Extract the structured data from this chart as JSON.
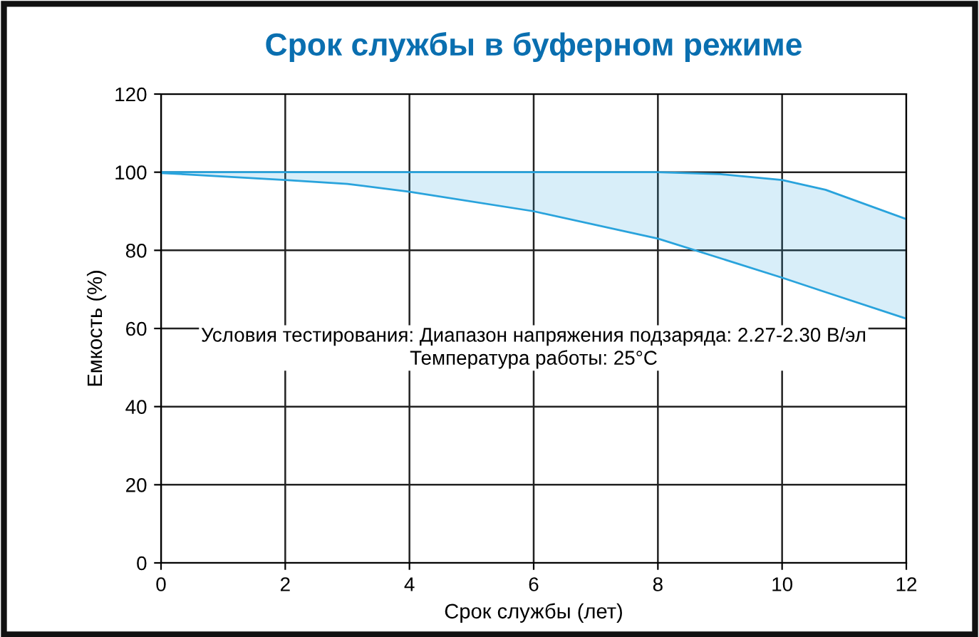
{
  "chart_data": {
    "type": "line",
    "title": "Срок службы в буферном режиме",
    "xlabel": "Срок службы (лет)",
    "ylabel": "Емкость (%)",
    "x": [
      0,
      2,
      3,
      4,
      6,
      8,
      9,
      10,
      10.7,
      12
    ],
    "series": [
      {
        "color": "#29a3dc",
        "values": [
          100,
          100,
          100,
          100,
          100,
          100,
          99.5,
          98,
          95.5,
          88
        ]
      },
      {
        "color": "#29a3dc",
        "values": [
          99.8,
          98,
          97,
          95,
          90,
          83,
          78,
          73,
          69.3,
          62.5
        ],
        "lower": [
          99.8,
          98,
          97,
          95,
          90,
          83,
          78,
          73,
          69.3,
          62.5
        ],
        "upper": [
          100,
          100,
          100,
          100,
          100,
          100,
          99.5,
          98,
          95.5,
          88
        ]
      }
    ],
    "annotations": [
      "Условия тестирования: Диапазон напряжения подзаряда: 2.27-2.30 В/эл\nТемпература работы: 25°C"
    ],
    "xlim": [
      0,
      12
    ],
    "xticks": [
      0,
      2,
      4,
      6,
      8,
      10,
      12
    ],
    "ylim": [
      0,
      120
    ],
    "yticks": [
      0,
      20,
      40,
      60,
      80,
      100,
      120
    ],
    "grid": true,
    "legend": false
  }
}
